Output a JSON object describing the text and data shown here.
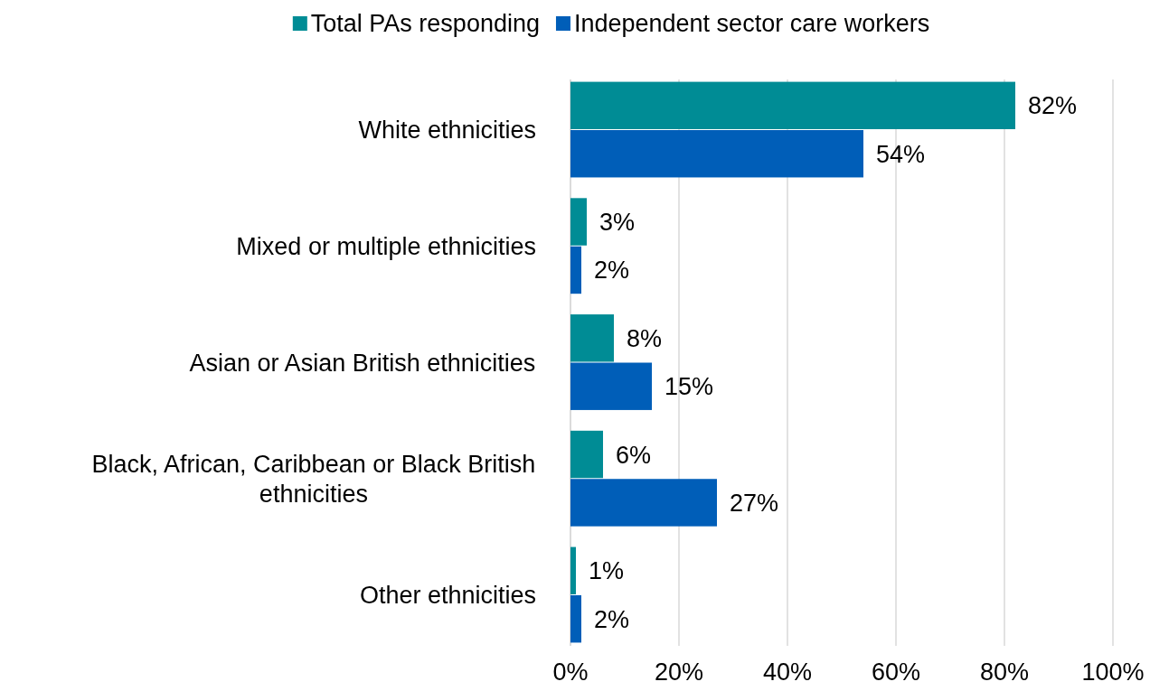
{
  "chart_data": {
    "type": "bar",
    "orientation": "horizontal",
    "categories": [
      "White ethnicities",
      "Mixed or multiple ethnicities",
      "Asian or Asian British ethnicities",
      "Black, African, Caribbean or Black British ethnicities",
      "Other ethnicities"
    ],
    "series": [
      {
        "name": "Total PAs responding",
        "color": "#008c95",
        "values": [
          82,
          3,
          8,
          6,
          1
        ],
        "value_labels": [
          "82%",
          "3%",
          "8%",
          "6%",
          "1%"
        ]
      },
      {
        "name": "Independent sector care workers",
        "color": "#005eb8",
        "values": [
          54,
          2,
          15,
          27,
          2
        ],
        "value_labels": [
          "54%",
          "2%",
          "15%",
          "27%",
          "2%"
        ]
      }
    ],
    "xlim": [
      0,
      100
    ],
    "xticks": [
      {
        "value": 0,
        "label": "0%"
      },
      {
        "value": 20,
        "label": "20%"
      },
      {
        "value": 40,
        "label": "40%"
      },
      {
        "value": 60,
        "label": "60%"
      },
      {
        "value": 80,
        "label": "80%"
      },
      {
        "value": 100,
        "label": "100%"
      }
    ],
    "grid": "x",
    "legend": "top"
  }
}
